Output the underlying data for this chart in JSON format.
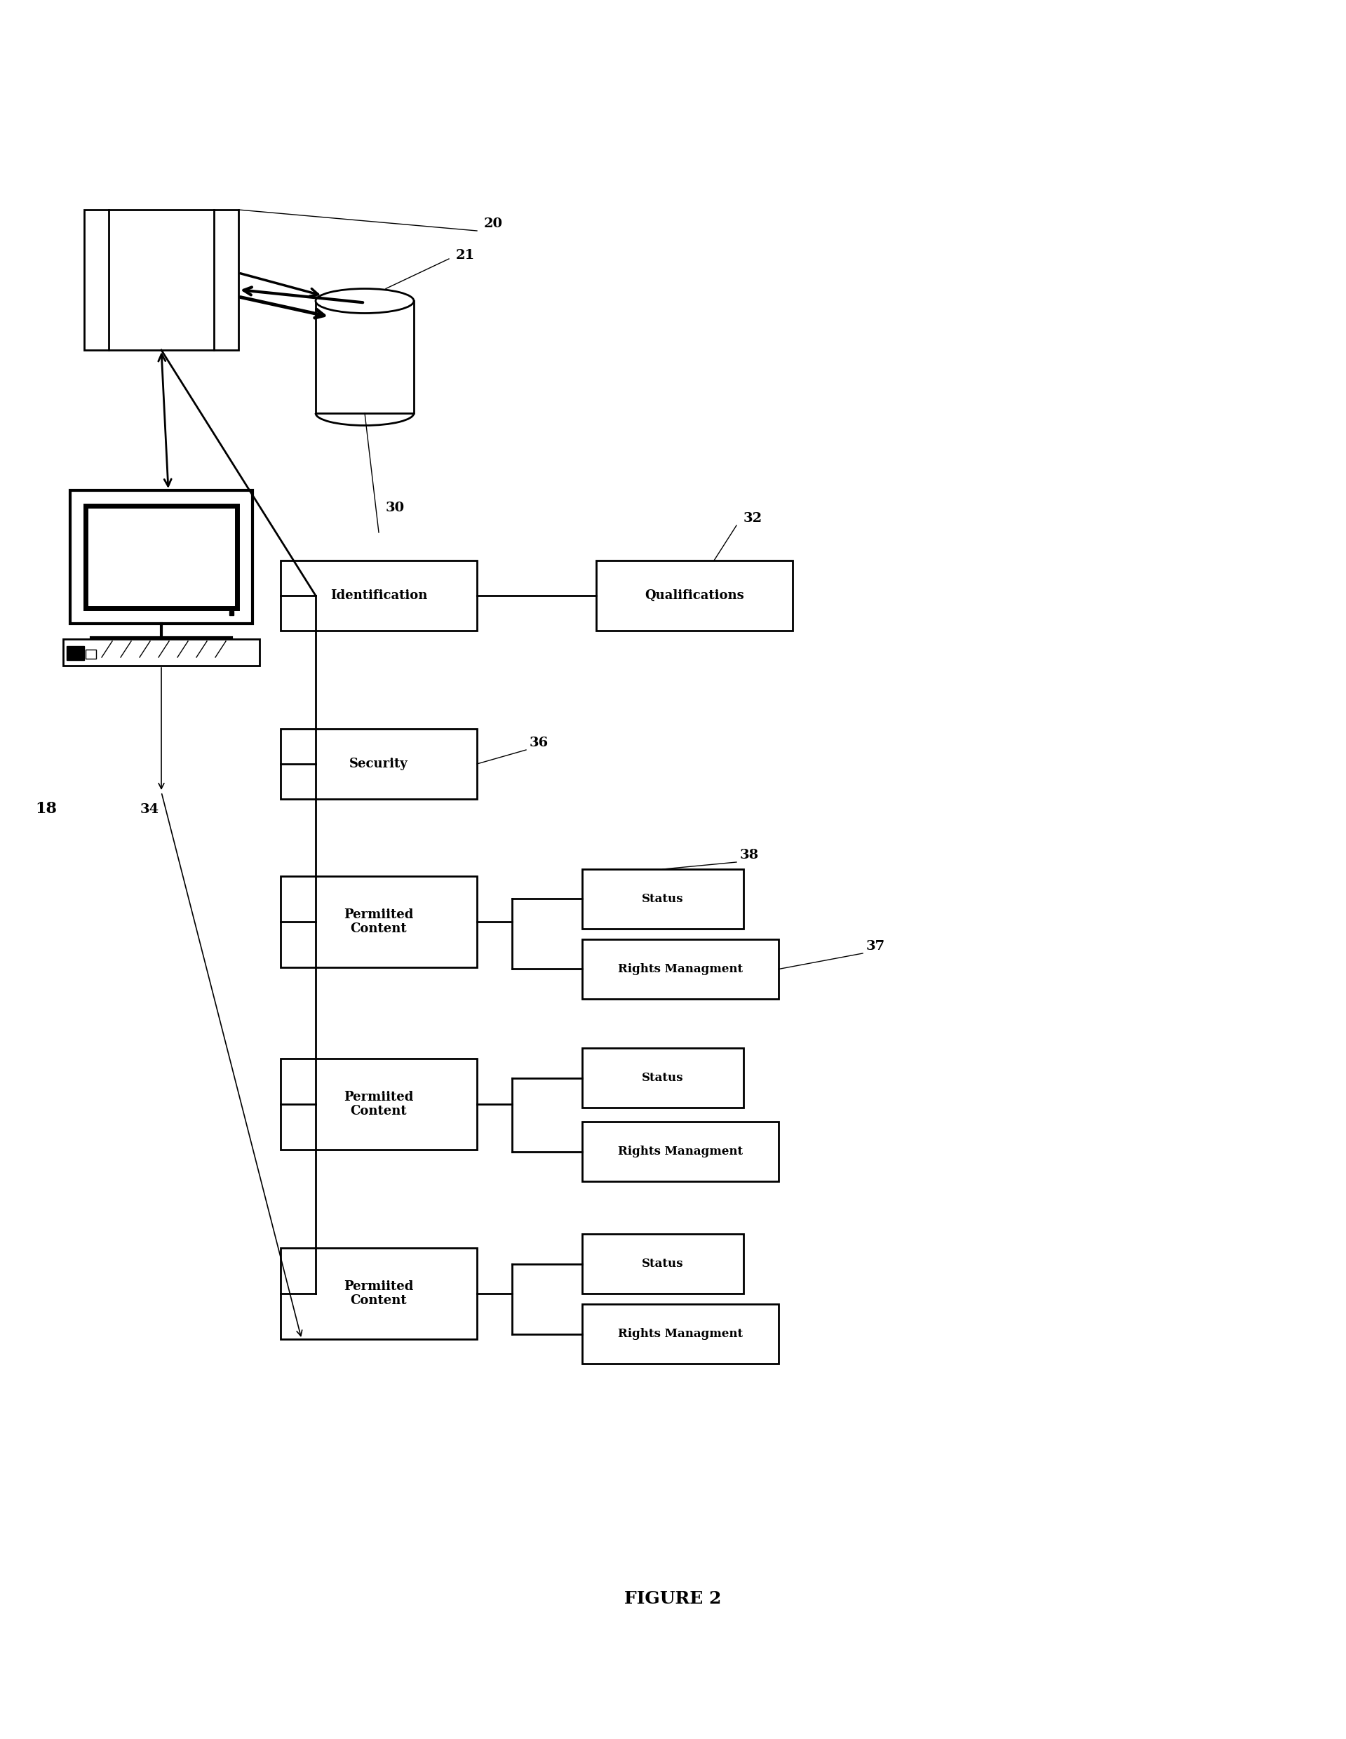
{
  "fig_width": 19.19,
  "fig_height": 24.79,
  "bg_color": "#ffffff",
  "title": "FIGURE 2",
  "label_20": "20",
  "label_21": "21",
  "label_30": "30",
  "label_32": "32",
  "label_34": "34",
  "label_36": "36",
  "label_37": "37",
  "label_38": "38",
  "label_18": "18",
  "box_identification": "Identification",
  "box_qualifications": "Qualifications",
  "box_security": "Security",
  "box_permitted1": "Permiited\nContent",
  "box_permitted2": "Permiited\nContent",
  "box_permitted3": "Permiited\nContent",
  "box_status1": "Status",
  "box_rights1": "Rights Managment",
  "box_status2": "Status",
  "box_rights2": "Rights Managment",
  "box_status3": "Status",
  "box_rights3": "Rights Managment"
}
